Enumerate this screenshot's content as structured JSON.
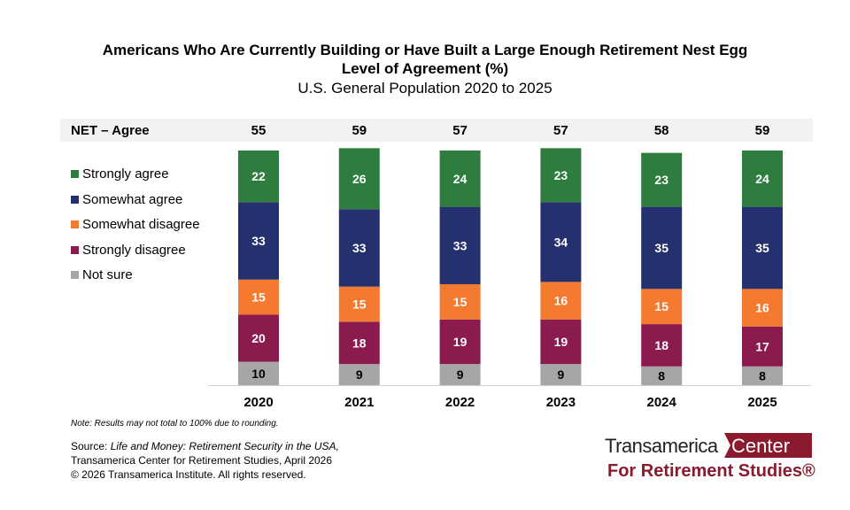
{
  "chart_data": {
    "type": "bar",
    "stacked": true,
    "title": "Americans Who Are Currently Building or Have Built a Large Enough Retirement Nest Egg",
    "subtitle": "Level of Agreement (%)",
    "subtitle2": "U.S. General Population 2020 to 2025",
    "categories": [
      "2020",
      "2021",
      "2022",
      "2023",
      "2024",
      "2025"
    ],
    "net_label": "NET – Agree",
    "net_values": [
      55,
      59,
      57,
      57,
      58,
      59
    ],
    "series": [
      {
        "name": "Not sure",
        "color": "#a6a6a6",
        "values": [
          10,
          9,
          9,
          9,
          8,
          8
        ]
      },
      {
        "name": "Strongly disagree",
        "color": "#8b1a4f",
        "values": [
          20,
          18,
          19,
          19,
          18,
          17
        ]
      },
      {
        "name": "Somewhat disagree",
        "color": "#f47a30",
        "values": [
          15,
          15,
          15,
          16,
          15,
          16
        ]
      },
      {
        "name": "Somewhat agree",
        "color": "#25306e",
        "values": [
          33,
          33,
          33,
          34,
          35,
          35
        ]
      },
      {
        "name": "Strongly agree",
        "color": "#2e7d3e",
        "values": [
          22,
          26,
          24,
          23,
          23,
          24
        ]
      }
    ],
    "legend_order": [
      "Strongly agree",
      "Somewhat agree",
      "Somewhat disagree",
      "Strongly disagree",
      "Not sure"
    ],
    "legend": "left",
    "ylim": [
      0,
      100
    ],
    "grid": false
  },
  "note": "Note: Results may not total to 100% due to rounding.",
  "source": {
    "prefix": "Source: ",
    "title": "Life and Money: Retirement Security in the USA,",
    "line2": "Transamerica Center for Retirement Studies, April 2026",
    "line3": "© 2026 Transamerica Institute. All rights reserved."
  },
  "logo": {
    "part1": "Transamerica",
    "part2": "Center",
    "part3": "For Retirement Studies®"
  }
}
